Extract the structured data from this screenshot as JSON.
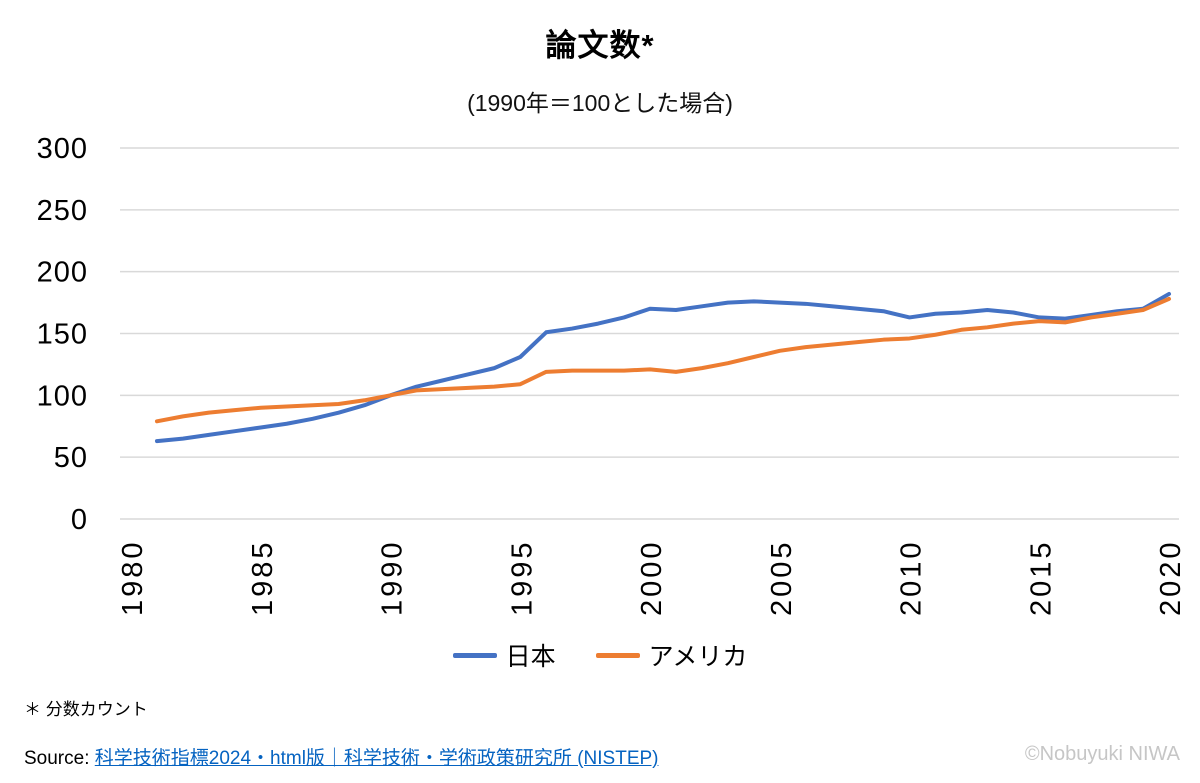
{
  "header": {
    "title": "論文数*",
    "subtitle": "(1990年＝100とした場合)"
  },
  "chart_data": {
    "type": "line",
    "title": "論文数*",
    "subtitle": "(1990年＝100とした場合)",
    "x": [
      1981,
      1982,
      1983,
      1984,
      1985,
      1986,
      1987,
      1988,
      1989,
      1990,
      1991,
      1992,
      1993,
      1994,
      1995,
      1996,
      1997,
      1998,
      1999,
      2000,
      2001,
      2002,
      2003,
      2004,
      2005,
      2006,
      2007,
      2008,
      2009,
      2010,
      2011,
      2012,
      2013,
      2014,
      2015,
      2016,
      2017,
      2018,
      2019,
      2020
    ],
    "series": [
      {
        "name": "日本",
        "color": "#4472C4",
        "values": [
          63,
          65,
          68,
          71,
          74,
          77,
          81,
          86,
          92,
          100,
          107,
          112,
          117,
          122,
          131,
          151,
          154,
          158,
          163,
          170,
          169,
          172,
          175,
          176,
          175,
          174,
          172,
          170,
          168,
          163,
          166,
          167,
          169,
          167,
          163,
          162,
          165,
          168,
          170,
          182
        ]
      },
      {
        "name": "アメリカ",
        "color": "#ED7D31",
        "values": [
          79,
          83,
          86,
          88,
          90,
          91,
          92,
          93,
          96,
          100,
          104,
          105,
          106,
          107,
          109,
          119,
          120,
          120,
          120,
          121,
          119,
          122,
          126,
          131,
          136,
          139,
          141,
          143,
          145,
          146,
          149,
          153,
          155,
          158,
          160,
          159,
          163,
          166,
          169,
          178
        ]
      }
    ],
    "xticks": [
      "1980",
      "1985",
      "1990",
      "1995",
      "2000",
      "2005",
      "2010",
      "2015",
      "2020"
    ],
    "yticks": [
      "0",
      "50",
      "100",
      "150",
      "200",
      "250",
      "300"
    ],
    "xlim": [
      1980,
      2021
    ],
    "ylim": [
      0,
      300
    ],
    "grid": "horizontal",
    "gridline_color": "#d9d9d9",
    "legend_position": "bottom"
  },
  "footnote": "＊ 分数カウント",
  "source": {
    "label": "Source:",
    "link_text": "科学技術指標2024・html版｜科学技術・学術政策研究所 (NISTEP)",
    "link_color": "#0563C1"
  },
  "copyright": "©Nobuyuki NIWA"
}
